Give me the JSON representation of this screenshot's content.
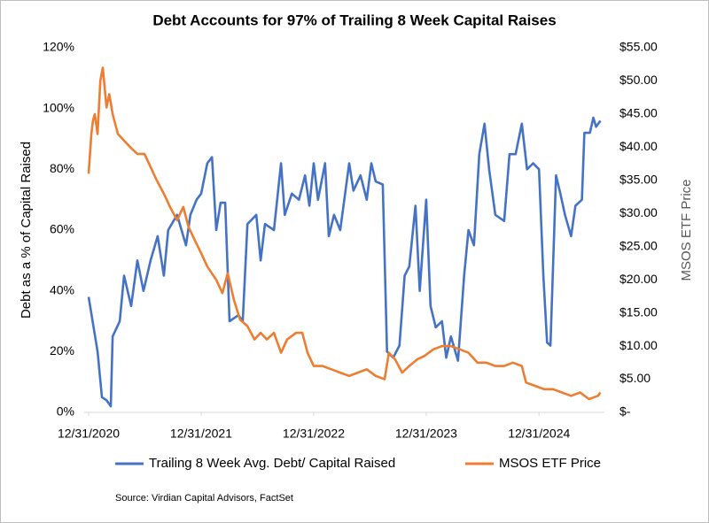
{
  "chart_data": {
    "type": "line",
    "title": "Debt Accounts for 97% of Trailing 8 Week Capital Raises",
    "y_label": "Debt as a % of Capital Raised",
    "y2_label": "MSOS ETF Price",
    "source": "Source: Virdian Capital Advisors, FactSet",
    "xlim": [
      "2020-12-31",
      "2025-07-31"
    ],
    "xticks": [
      {
        "value": "2020-12-31",
        "label": "12/31/2020"
      },
      {
        "value": "2021-12-31",
        "label": "12/31/2021"
      },
      {
        "value": "2022-12-31",
        "label": "12/31/2022"
      },
      {
        "value": "2023-12-31",
        "label": "12/31/2023"
      },
      {
        "value": "2024-12-31",
        "label": "12/31/2024"
      }
    ],
    "ylim": [
      0,
      120
    ],
    "yticks": [
      {
        "value": 0,
        "label": "0%"
      },
      {
        "value": 20,
        "label": "20%"
      },
      {
        "value": 40,
        "label": "40%"
      },
      {
        "value": 60,
        "label": "60%"
      },
      {
        "value": 80,
        "label": "80%"
      },
      {
        "value": 100,
        "label": "100%"
      },
      {
        "value": 120,
        "label": "120%"
      }
    ],
    "y2lim": [
      0,
      55
    ],
    "y2ticks": [
      {
        "value": 0,
        "label": "$-"
      },
      {
        "value": 5,
        "label": "$5.00"
      },
      {
        "value": 10,
        "label": "$10.00"
      },
      {
        "value": 15,
        "label": "$15.00"
      },
      {
        "value": 20,
        "label": "$20.00"
      },
      {
        "value": 25,
        "label": "$25.00"
      },
      {
        "value": 30,
        "label": "$30.00"
      },
      {
        "value": 35,
        "label": "$35.00"
      },
      {
        "value": 40,
        "label": "$40.00"
      },
      {
        "value": 45,
        "label": "$45.00"
      },
      {
        "value": 50,
        "label": "$50.00"
      },
      {
        "value": 55,
        "label": "$55.00"
      }
    ],
    "legend": "bottom",
    "series": [
      {
        "name": "Trailing 8 Week Avg. Debt/ Capital Raised",
        "color": "#4472c4",
        "x": [
          "2020-12-31",
          "2021-01-29",
          "2021-02-12",
          "2021-02-27",
          "2021-03-13",
          "2021-03-19",
          "2021-04-11",
          "2021-04-25",
          "2021-05-18",
          "2021-06-07",
          "2021-06-27",
          "2021-07-20",
          "2021-08-12",
          "2021-09-01",
          "2021-09-15",
          "2021-10-14",
          "2021-11-12",
          "2021-11-26",
          "2021-12-16",
          "2021-12-31",
          "2022-01-20",
          "2022-02-04",
          "2022-02-18",
          "2022-03-04",
          "2022-03-19",
          "2022-04-02",
          "2022-05-01",
          "2022-05-15",
          "2022-05-30",
          "2022-06-28",
          "2022-07-12",
          "2022-07-26",
          "2022-08-24",
          "2022-09-16",
          "2022-09-28",
          "2022-10-21",
          "2022-11-13",
          "2022-12-03",
          "2022-12-17",
          "2022-12-31",
          "2023-01-14",
          "2023-02-06",
          "2023-02-18",
          "2023-03-07",
          "2023-03-27",
          "2023-04-25",
          "2023-05-09",
          "2023-06-01",
          "2023-06-21",
          "2023-07-06",
          "2023-07-20",
          "2023-08-12",
          "2023-08-26",
          "2023-09-15",
          "2023-10-05",
          "2023-10-22",
          "2023-11-06",
          "2023-11-26",
          "2023-12-10",
          "2023-12-31",
          "2024-01-14",
          "2024-01-31",
          "2024-02-20",
          "2024-03-05",
          "2024-03-20",
          "2024-04-12",
          "2024-05-02",
          "2024-05-16",
          "2024-06-03",
          "2024-06-20",
          "2024-07-07",
          "2024-07-22",
          "2024-08-11",
          "2024-09-09",
          "2024-09-26",
          "2024-10-16",
          "2024-11-05",
          "2024-11-22",
          "2024-12-12",
          "2024-12-31",
          "2025-01-14",
          "2025-01-26",
          "2025-02-06",
          "2025-02-24",
          "2025-03-10",
          "2025-03-25",
          "2025-04-14",
          "2025-04-28",
          "2025-05-19",
          "2025-05-27",
          "2025-06-14",
          "2025-06-25",
          "2025-07-04",
          "2025-07-18"
        ],
        "values": [
          38,
          20,
          5,
          4,
          2,
          25,
          30,
          45,
          35,
          50,
          40,
          50,
          58,
          45,
          60,
          65,
          55,
          65,
          70,
          72,
          82,
          84,
          60,
          69,
          69,
          30,
          32,
          30,
          62,
          65,
          50,
          62,
          60,
          82,
          65,
          72,
          70,
          78,
          68,
          82,
          70,
          82,
          58,
          65,
          60,
          82,
          73,
          78,
          70,
          82,
          76,
          75,
          20,
          18,
          22,
          45,
          48,
          68,
          40,
          70,
          35,
          28,
          30,
          18,
          25,
          17,
          45,
          60,
          55,
          85,
          95,
          80,
          65,
          63,
          85,
          85,
          95,
          80,
          82,
          80,
          45,
          23,
          22,
          78,
          72,
          65,
          58,
          68,
          70,
          92,
          92,
          97,
          94,
          96
        ]
      },
      {
        "name": "MSOS ETF Price",
        "color": "#ed7d31",
        "axis": "y2",
        "x": [
          "2020-12-31",
          "2021-01-09",
          "2021-01-14",
          "2021-01-20",
          "2021-01-29",
          "2021-02-07",
          "2021-02-15",
          "2021-02-27",
          "2021-03-08",
          "2021-03-19",
          "2021-04-05",
          "2021-04-25",
          "2021-05-15",
          "2021-06-07",
          "2021-06-30",
          "2021-07-20",
          "2021-08-09",
          "2021-09-01",
          "2021-09-21",
          "2021-10-14",
          "2021-11-03",
          "2021-11-20",
          "2021-12-10",
          "2021-12-31",
          "2022-01-20",
          "2022-02-18",
          "2022-03-10",
          "2022-03-27",
          "2022-04-16",
          "2022-05-06",
          "2022-05-30",
          "2022-06-22",
          "2022-07-12",
          "2022-08-01",
          "2022-08-24",
          "2022-09-16",
          "2022-10-06",
          "2022-11-04",
          "2022-11-24",
          "2022-12-11",
          "2022-12-31",
          "2023-01-29",
          "2023-02-26",
          "2023-03-27",
          "2023-04-25",
          "2023-05-23",
          "2023-06-21",
          "2023-07-20",
          "2023-08-18",
          "2023-09-01",
          "2023-09-21",
          "2023-10-14",
          "2023-11-06",
          "2023-12-02",
          "2023-12-25",
          "2024-01-23",
          "2024-02-20",
          "2024-03-20",
          "2024-04-18",
          "2024-05-16",
          "2024-06-14",
          "2024-07-13",
          "2024-08-11",
          "2024-09-09",
          "2024-10-07",
          "2024-11-05",
          "2024-11-19",
          "2024-12-18",
          "2025-01-16",
          "2025-02-14",
          "2025-03-15",
          "2025-04-14",
          "2025-05-13",
          "2025-06-11",
          "2025-07-10",
          "2025-07-18"
        ],
        "values": [
          36,
          42,
          44,
          45,
          42,
          50,
          52,
          46,
          48,
          45,
          42,
          41,
          40,
          39,
          39,
          37,
          35,
          33,
          31,
          29,
          31,
          28,
          26,
          24,
          22,
          20,
          18,
          21,
          17,
          14,
          13,
          11,
          12,
          11,
          12,
          9,
          11,
          12,
          12,
          9,
          7,
          7,
          6.5,
          6,
          5.5,
          6,
          6.5,
          5.5,
          5,
          9,
          8,
          6,
          7,
          8,
          8.5,
          9.5,
          10,
          10,
          9.5,
          9,
          7.5,
          7.5,
          7,
          7,
          7.5,
          7,
          4.5,
          4,
          3.5,
          3.5,
          3,
          2.5,
          3,
          2,
          2.5,
          3
        ]
      }
    ]
  }
}
